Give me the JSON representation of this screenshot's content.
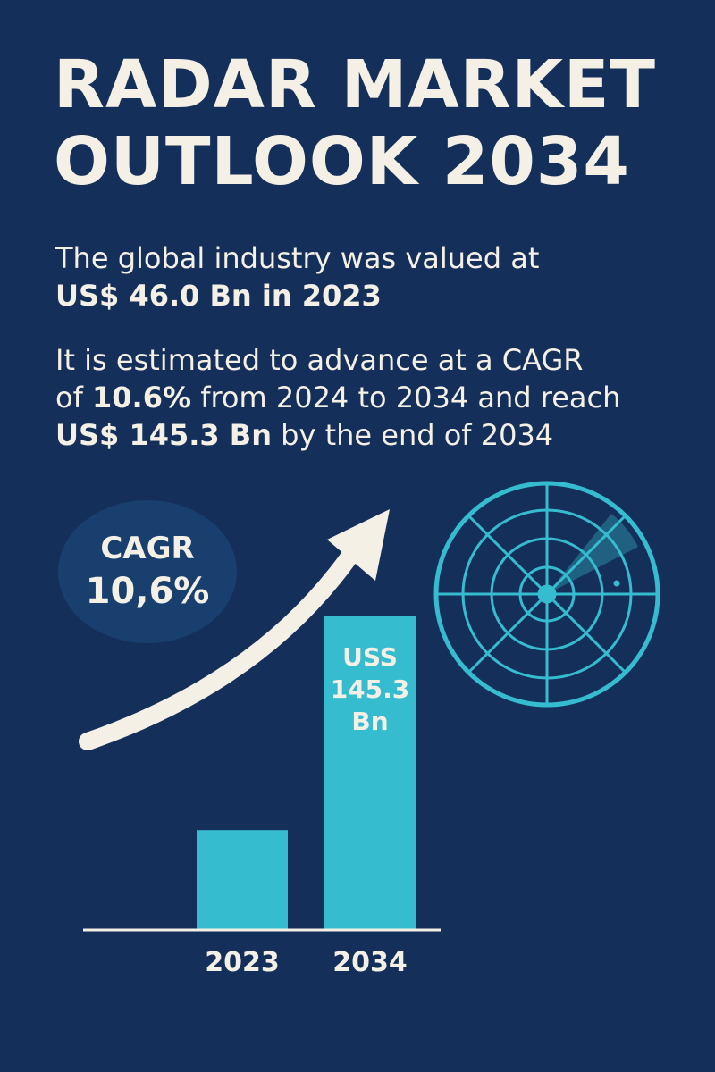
{
  "title": {
    "line1": "RADAR MARKET",
    "line2": "OUTLOOK 2034"
  },
  "intro": {
    "line1": "The global industry was valued at",
    "line2": "US$ 46.0 Bn in 2023"
  },
  "forecast": {
    "line1": "It is estimated to advance at a CAGR",
    "line2_prefix": "of ",
    "line2_bold": "10.6%",
    "line2_suffix": " from 2024 to 2034 and reach",
    "line3_bold": "US$ 145.3 Bn",
    "line3_suffix": " by the end of 2034"
  },
  "cagr_badge": {
    "label": "CAGR",
    "value": "10,6%"
  },
  "chart_data": {
    "type": "bar",
    "categories": [
      "2023",
      "2034"
    ],
    "values": [
      46.0,
      145.3
    ],
    "bar_labels": {
      "2034": [
        "USS",
        "145.3",
        "Bn"
      ]
    },
    "title": "",
    "xlabel": "",
    "ylabel": "",
    "ylim": [
      0,
      145.3
    ],
    "grid": false,
    "legend": "none"
  },
  "colors": {
    "background": "#14305a",
    "text": "#f4f0e6",
    "bar": "#36bccf",
    "radar": "#36bccf",
    "badge": "#183f6e",
    "arrow": "#f4f0e6"
  },
  "icons": {
    "trend": "trend-up-arrow-icon",
    "radar": "radar-icon"
  }
}
